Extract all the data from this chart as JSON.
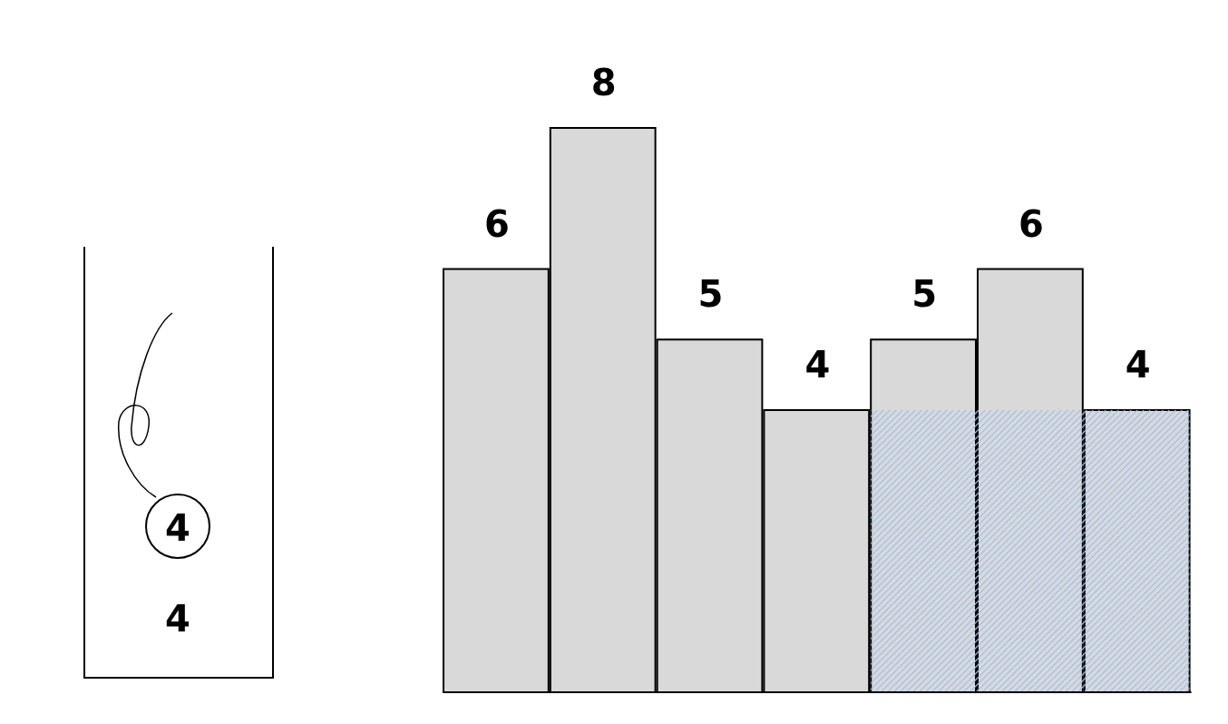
{
  "chart_data": [
    {
      "type": "other",
      "annotations": [
        "4",
        "4"
      ]
    },
    {
      "type": "bar",
      "categories": [
        null,
        null,
        null,
        null,
        null,
        null,
        null
      ],
      "data_labels": true,
      "color": "#d9d9d9",
      "values": [
        6,
        8,
        5,
        4,
        5,
        6,
        4
      ]
    }
  ]
}
